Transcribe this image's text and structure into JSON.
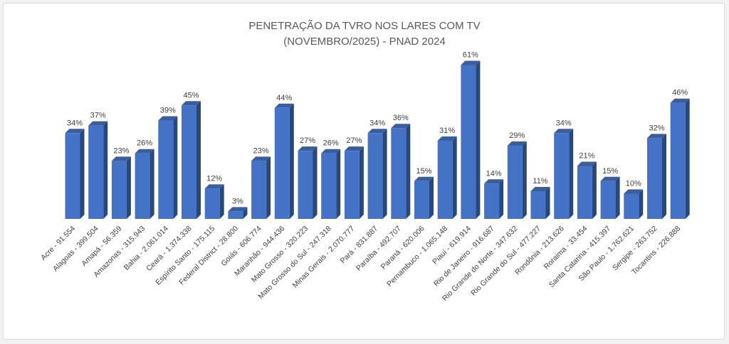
{
  "chart_data": {
    "type": "bar",
    "title_line1": "PENETRAÇÃO DA TVRO NOS LARES COM TV",
    "title_line2": "(NOVEMBRO/2025) - PNAD 2024",
    "xlabel": "",
    "ylabel": "",
    "ylim": [
      0,
      70
    ],
    "grid": false,
    "legend": "none",
    "bar_color": "#4472c4",
    "categories": [
      "Acre - 91.554",
      "Alagoas - 399.504",
      "Amapá - 56.359",
      "Amazonas - 315.943",
      "Bahia - 2.061.014",
      "Ceará - 1.374.338",
      "Espírito Santo - 175.115",
      "Federal District - 28.800",
      "Goiás - 606.774",
      "Maranhão - 944.436",
      "Mato Grosso - 320.223",
      "Mato Grosso do Sul - 247.318",
      "Minas Gerais - 2.070.777",
      "Pará - 831.887",
      "Paraíba - 492.707",
      "Paraná - 620.006",
      "Pernambuco - 1.065.148",
      "Piauí - 619.914",
      "Rio de Janeiro - 916.687",
      "Rio Grande do Norte - 347.632",
      "Rio Grande do Sul - 477.227",
      "Rondônia - 213.626",
      "Roraima - 33.454",
      "Santa Catarina - 415.397",
      "São Paulo - 1.762.621",
      "Sergipe - 263.752",
      "Tocantins - 226.888"
    ],
    "values": [
      34,
      37,
      23,
      26,
      39,
      45,
      12,
      3,
      23,
      44,
      27,
      26,
      27,
      34,
      36,
      15,
      31,
      61,
      14,
      29,
      11,
      34,
      21,
      15,
      10,
      32,
      46
    ],
    "value_labels": [
      "34%",
      "37%",
      "23%",
      "26%",
      "39%",
      "45%",
      "12%",
      "3%",
      "23%",
      "44%",
      "27%",
      "26%",
      "27%",
      "34%",
      "36%",
      "15%",
      "31%",
      "61%",
      "14%",
      "29%",
      "11%",
      "34%",
      "21%",
      "15%",
      "10%",
      "32%",
      "46%"
    ]
  }
}
